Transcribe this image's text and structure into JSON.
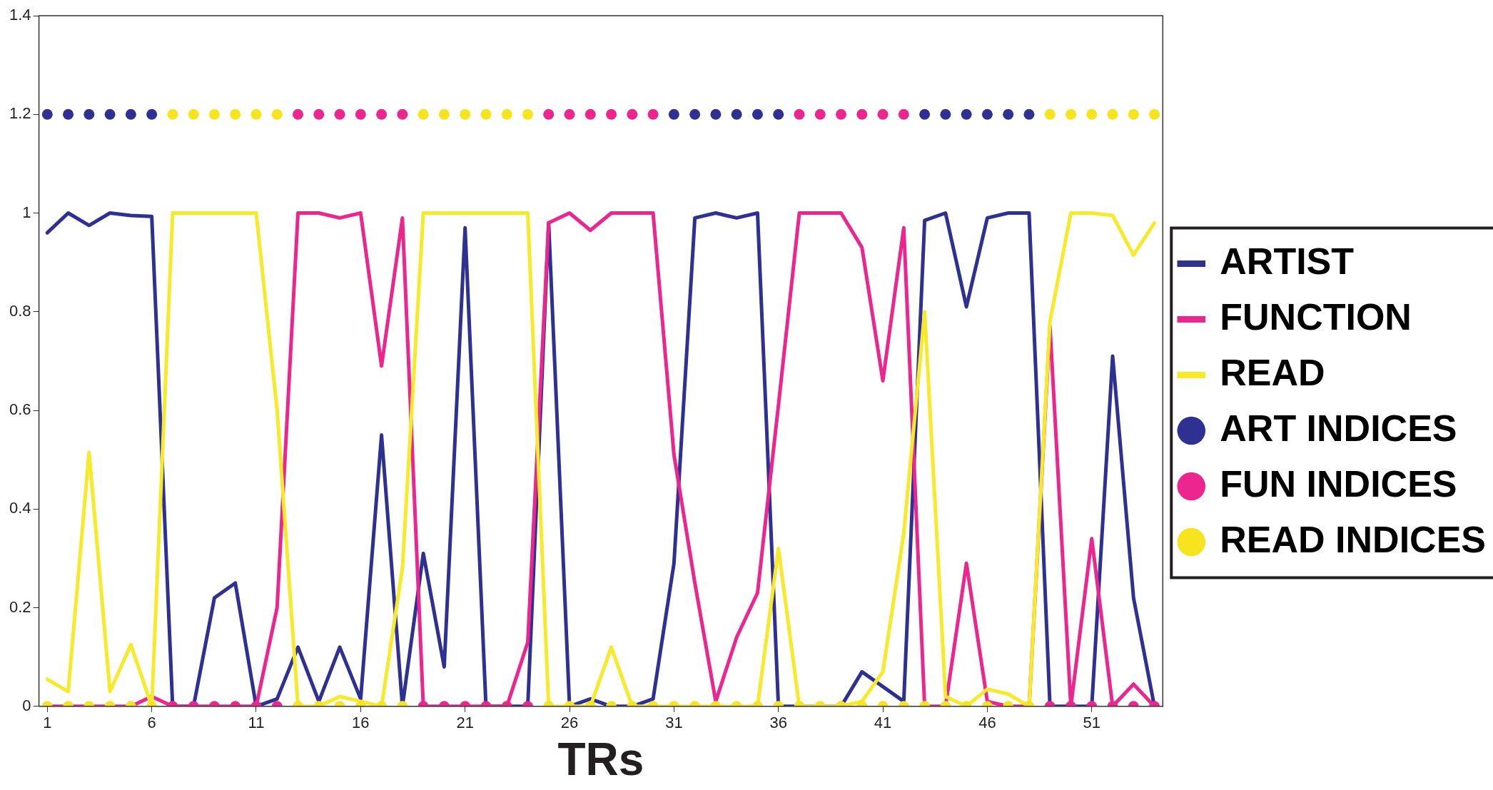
{
  "chart_data": {
    "type": "line",
    "xlabel": "TRs",
    "x": [
      1,
      2,
      3,
      4,
      5,
      6,
      7,
      8,
      9,
      10,
      11,
      12,
      13,
      14,
      15,
      16,
      17,
      18,
      19,
      20,
      21,
      22,
      23,
      24,
      25,
      26,
      27,
      28,
      29,
      30,
      31,
      32,
      33,
      34,
      35,
      36,
      37,
      38,
      39,
      40,
      41,
      42,
      43,
      44,
      45,
      46,
      47,
      48,
      49,
      50,
      51,
      52,
      53,
      54
    ],
    "xlim": [
      0.6,
      54.4
    ],
    "xticks": [
      1,
      6,
      11,
      16,
      21,
      26,
      31,
      36,
      41,
      46,
      51
    ],
    "ylim": [
      0,
      1.4
    ],
    "yticks": [
      0,
      0.2,
      0.4,
      0.6,
      0.8,
      1,
      1.2,
      1.4
    ],
    "grid": false,
    "legend": "right",
    "line_style": "solid",
    "series": [
      {
        "name": "ARTIST",
        "marker": "none",
        "color": "#2e3192",
        "values": [
          0.96,
          1.0,
          0.975,
          1.0,
          0.995,
          0.993,
          0,
          0,
          0.22,
          0.25,
          0,
          0.015,
          0.12,
          0.01,
          0.12,
          0.015,
          0.55,
          0,
          0.31,
          0.08,
          0.97,
          0,
          0,
          0,
          0.98,
          0,
          0.015,
          0,
          0,
          0.015,
          0.29,
          0.99,
          1.0,
          0.99,
          1.0,
          0,
          0,
          0,
          0,
          0.07,
          0.04,
          0.01,
          0.985,
          1.0,
          0.81,
          0.99,
          1.0,
          1.0,
          0,
          0,
          0,
          0.71,
          0.22,
          0
        ]
      },
      {
        "name": "FUNCTION",
        "marker": "none",
        "color": "#ec268f",
        "values": [
          0,
          0,
          0,
          0,
          0,
          0.02,
          0,
          0,
          0,
          0,
          0,
          0.2,
          1.0,
          1.0,
          0.99,
          1.0,
          0.69,
          0.99,
          0,
          0,
          0,
          0,
          0,
          0.13,
          0.98,
          1.0,
          0.965,
          1.0,
          1.0,
          1.0,
          0.51,
          0.25,
          0.01,
          0.14,
          0.23,
          0.61,
          1.0,
          1.0,
          1.0,
          0.93,
          0.66,
          0.97,
          0,
          0,
          0.29,
          0.01,
          0,
          0,
          0.77,
          0,
          0.34,
          0,
          0.045,
          0
        ]
      },
      {
        "name": "READ",
        "marker": "none",
        "color": "#f7ea2a",
        "values": [
          0.055,
          0.03,
          0.515,
          0.03,
          0.125,
          0,
          1.0,
          1.0,
          1.0,
          1.0,
          1.0,
          0.6,
          0,
          0,
          0.02,
          0.01,
          0,
          0.28,
          1.0,
          1.0,
          1.0,
          1.0,
          1.0,
          1.0,
          0,
          0,
          0,
          0.12,
          0,
          0,
          0,
          0,
          0,
          0,
          0,
          0.32,
          0,
          0,
          0,
          0.01,
          0.07,
          0.35,
          0.8,
          0.02,
          0,
          0.035,
          0.025,
          0,
          0.78,
          1.0,
          1.0,
          0.995,
          0.915,
          0.98
        ]
      },
      {
        "name": "ART INDICES",
        "type": "scatter",
        "marker": "circle",
        "color": "#2e3192",
        "values": [
          1.2,
          1.2,
          1.2,
          1.2,
          1.2,
          1.2,
          null,
          null,
          null,
          null,
          null,
          null,
          null,
          null,
          null,
          null,
          null,
          null,
          null,
          null,
          null,
          null,
          null,
          null,
          null,
          null,
          null,
          null,
          null,
          null,
          1.2,
          1.2,
          1.2,
          1.2,
          1.2,
          1.2,
          null,
          null,
          null,
          null,
          null,
          null,
          1.2,
          1.2,
          1.2,
          1.2,
          1.2,
          1.2,
          null,
          null,
          null,
          null,
          null,
          null
        ]
      },
      {
        "name": "FUN INDICES",
        "type": "scatter",
        "marker": "circle",
        "color": "#ec268f",
        "values": [
          null,
          null,
          null,
          null,
          null,
          null,
          0,
          0,
          0,
          0,
          0,
          0,
          1.2,
          1.2,
          1.2,
          1.2,
          1.2,
          1.2,
          0,
          0,
          0,
          0,
          0,
          0,
          1.2,
          1.2,
          1.2,
          1.2,
          1.2,
          1.2,
          null,
          null,
          null,
          null,
          null,
          null,
          1.2,
          1.2,
          1.2,
          1.2,
          1.2,
          1.2,
          null,
          null,
          null,
          null,
          null,
          null,
          0,
          0,
          0,
          0,
          0,
          0
        ]
      },
      {
        "name": "READ INDICES",
        "type": "scatter",
        "marker": "circle",
        "color": "#f7e41e",
        "values": [
          0,
          0,
          0,
          0,
          0,
          0,
          1.2,
          1.2,
          1.2,
          1.2,
          1.2,
          1.2,
          0,
          0,
          0,
          0,
          0,
          0,
          1.2,
          1.2,
          1.2,
          1.2,
          1.2,
          1.2,
          0,
          0,
          0,
          0,
          0,
          0,
          0,
          0,
          0,
          0,
          0,
          0,
          0,
          0,
          0,
          0,
          0,
          0,
          0,
          0,
          0,
          0,
          0,
          0,
          1.2,
          1.2,
          1.2,
          1.2,
          1.2,
          1.2
        ]
      }
    ]
  }
}
